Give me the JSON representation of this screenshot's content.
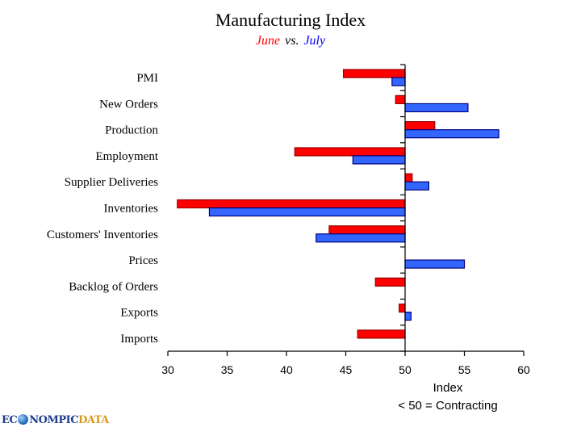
{
  "chart_data": {
    "type": "bar",
    "orientation": "horizontal",
    "title": "Manufacturing Index",
    "subtitle": {
      "june": "June",
      "vs": "vs.",
      "july": "July"
    },
    "categories": [
      "PMI",
      "New Orders",
      "Production",
      "Employment",
      "Supplier Deliveries",
      "Inventories",
      "Customers' Inventories",
      "Prices",
      "Backlog of Orders",
      "Exports",
      "Imports"
    ],
    "series": [
      {
        "name": "June",
        "color": "#ff0000",
        "values": [
          44.8,
          49.2,
          52.5,
          40.7,
          50.6,
          30.8,
          43.6,
          50.0,
          47.5,
          49.5,
          46.0
        ]
      },
      {
        "name": "July",
        "color": "#3366ff",
        "values": [
          48.9,
          55.3,
          57.9,
          45.6,
          52.0,
          33.5,
          42.5,
          55.0,
          50.0,
          50.5,
          50.0
        ]
      }
    ],
    "base": 50,
    "xlim": [
      30,
      60
    ],
    "xticks": [
      30,
      35,
      40,
      45,
      50,
      55,
      60
    ],
    "xlabel": "Index",
    "xnote": "< 50 = Contracting",
    "grid": false,
    "legend": "subtitle"
  },
  "logo": {
    "left": "EC",
    "mid": "NOMPIC",
    "right": "DATA"
  }
}
